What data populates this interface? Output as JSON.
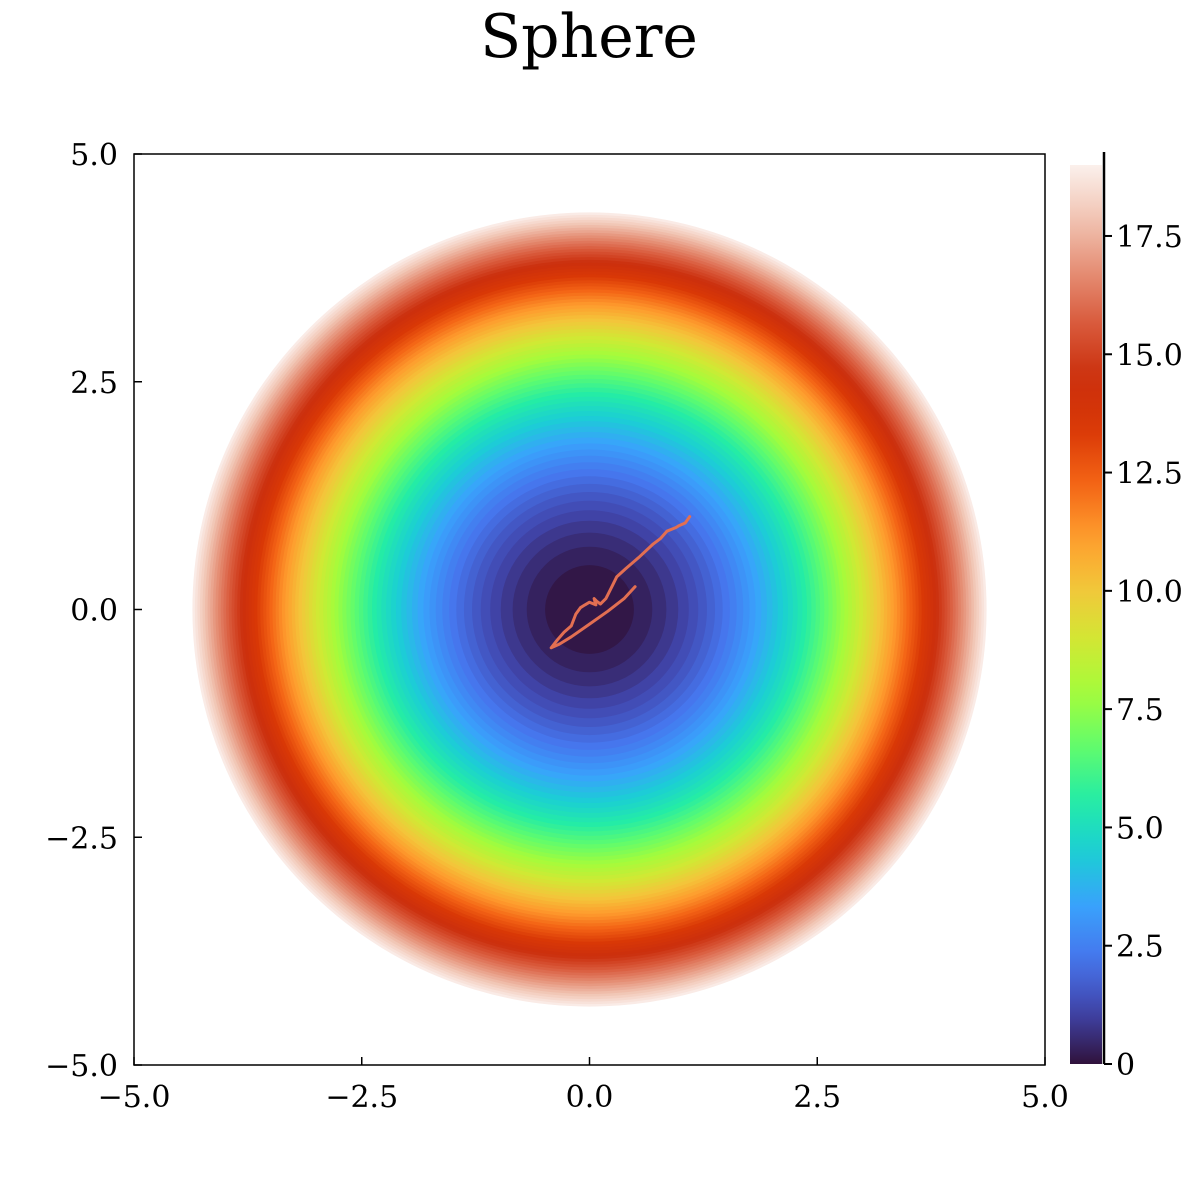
{
  "chart_data": {
    "type": "contour",
    "title": "Sphere",
    "function": "x^2 + y^2",
    "xlim": [
      -5,
      5
    ],
    "ylim": [
      -5,
      5
    ],
    "x_ticks": [
      "−5.0",
      "−2.5",
      "0.0",
      "2.5",
      "5.0"
    ],
    "x_tick_values": [
      -5,
      -2.5,
      0,
      2.5,
      5
    ],
    "y_ticks": [
      "−5.0",
      "−2.5",
      "0.0",
      "2.5",
      "5.0"
    ],
    "y_tick_values": [
      -5,
      -2.5,
      0,
      2.5,
      5
    ],
    "colorbar": {
      "range": [
        0,
        19
      ],
      "ticks": [
        "0",
        "2.5",
        "5.0",
        "7.5",
        "10.0",
        "12.5",
        "15.0",
        "17.5"
      ],
      "tick_values": [
        0,
        2.5,
        5,
        7.5,
        10,
        12.5,
        15,
        17.5
      ],
      "colormap": [
        "#30123b",
        "#4145ab",
        "#4675ed",
        "#39a2fc",
        "#1bcfd4",
        "#24eca6",
        "#61fc6c",
        "#a4fc3b",
        "#d1e834",
        "#f3c63a",
        "#fe9b2d",
        "#f36315",
        "#d93806",
        "#cb2f0d",
        "#d95a3c",
        "#e58f75",
        "#f1c5b4",
        "#fbf0ec"
      ]
    },
    "contour_levels_max": 19,
    "path": {
      "color": "#e26f52",
      "x": [
        1.1,
        1.05,
        0.98,
        0.95,
        0.85,
        0.78,
        0.7,
        0.55,
        0.4,
        0.3,
        0.25,
        0.18,
        0.12,
        0.08,
        0.05,
        0.07,
        0.0,
        -0.05,
        -0.1,
        -0.15,
        -0.2,
        -0.28,
        -0.35,
        -0.42,
        -0.33,
        -0.2,
        0.0,
        0.2,
        0.38,
        0.5
      ],
      "y": [
        1.02,
        0.95,
        0.92,
        0.9,
        0.86,
        0.78,
        0.72,
        0.58,
        0.45,
        0.36,
        0.26,
        0.12,
        0.06,
        0.09,
        0.12,
        0.05,
        0.08,
        0.05,
        0.02,
        -0.05,
        -0.18,
        -0.25,
        -0.33,
        -0.42,
        -0.38,
        -0.3,
        -0.16,
        -0.02,
        0.12,
        0.25
      ]
    }
  }
}
